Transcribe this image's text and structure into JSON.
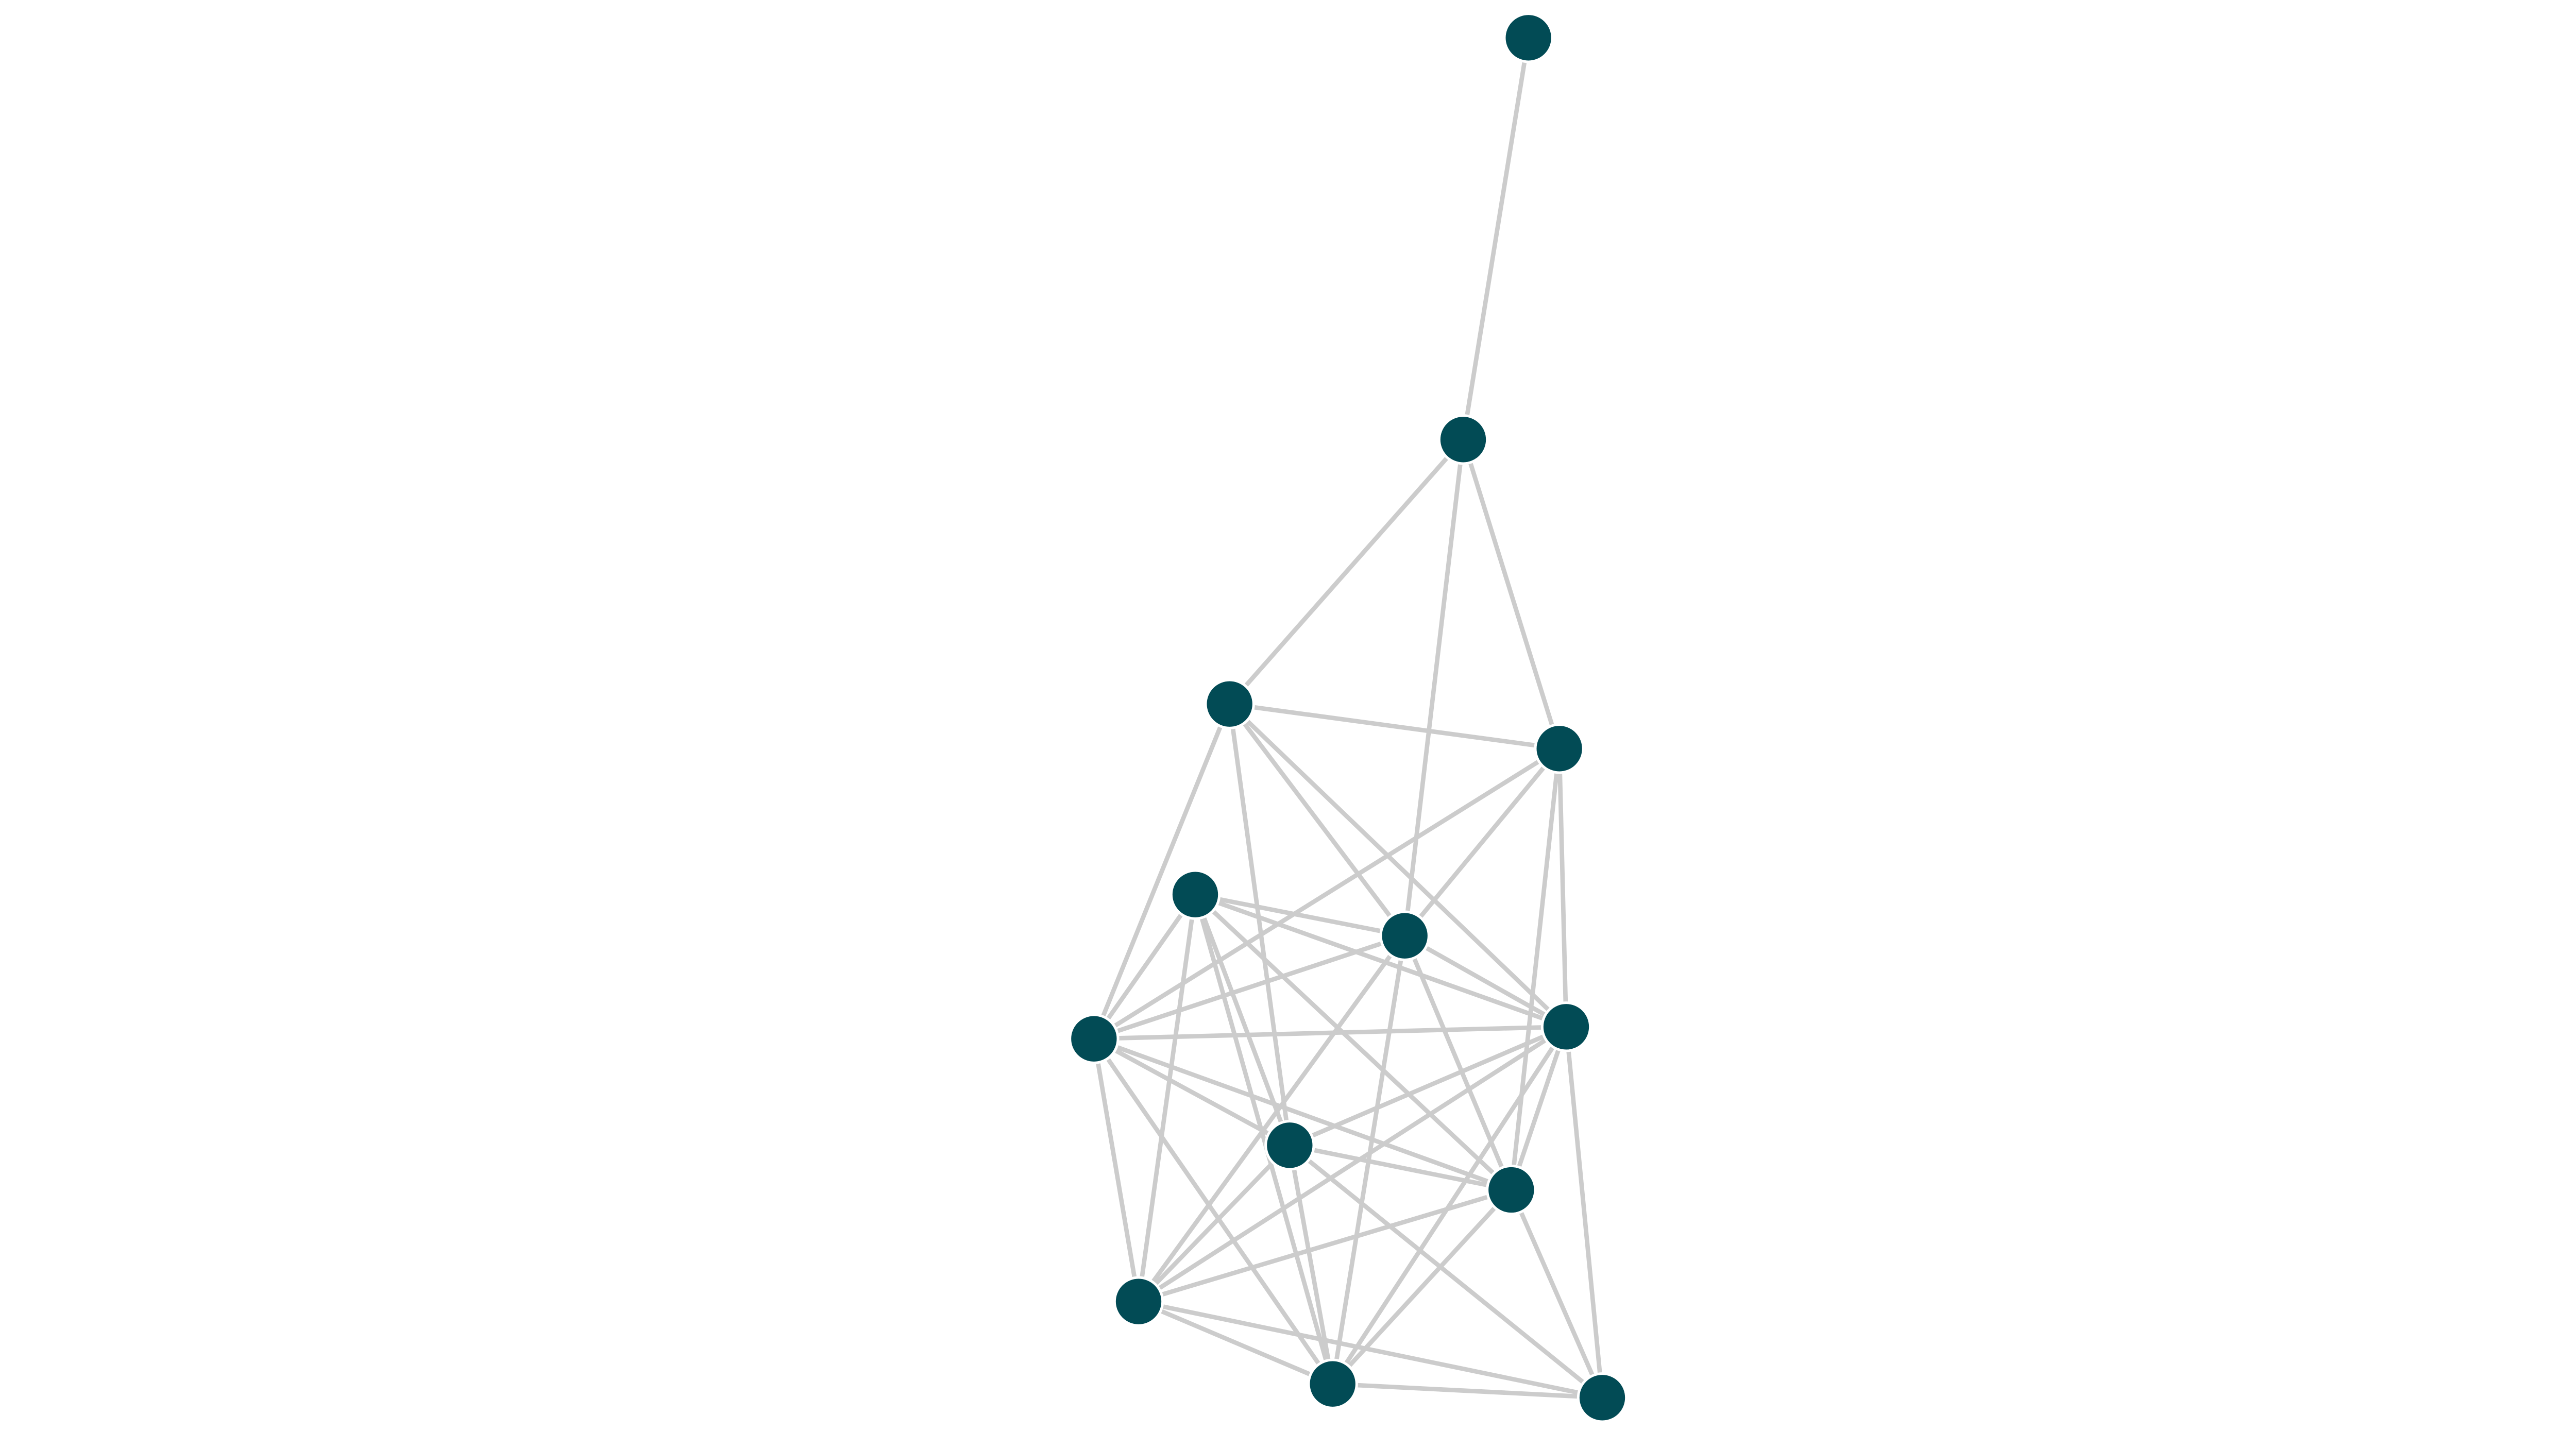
{
  "chart_data": {
    "type": "network",
    "node_count": 13,
    "node_color": "#024b55",
    "edge_color": "#cccccc",
    "edges": [
      [
        0,
        1
      ],
      [
        1,
        2
      ],
      [
        1,
        3
      ],
      [
        1,
        5
      ],
      [
        2,
        3
      ],
      [
        2,
        6
      ],
      [
        2,
        8
      ],
      [
        2,
        5
      ],
      [
        2,
        7
      ],
      [
        3,
        5
      ],
      [
        3,
        6
      ],
      [
        3,
        7
      ],
      [
        3,
        9
      ],
      [
        4,
        5
      ],
      [
        4,
        6
      ],
      [
        4,
        7
      ],
      [
        4,
        8
      ],
      [
        4,
        9
      ],
      [
        4,
        10
      ],
      [
        4,
        11
      ],
      [
        5,
        6
      ],
      [
        5,
        7
      ],
      [
        5,
        9
      ],
      [
        5,
        10
      ],
      [
        5,
        11
      ],
      [
        6,
        7
      ],
      [
        6,
        8
      ],
      [
        6,
        9
      ],
      [
        6,
        10
      ],
      [
        6,
        11
      ],
      [
        7,
        8
      ],
      [
        7,
        10
      ],
      [
        7,
        11
      ],
      [
        7,
        9
      ],
      [
        7,
        12
      ],
      [
        8,
        9
      ],
      [
        8,
        10
      ],
      [
        8,
        11
      ],
      [
        8,
        12
      ],
      [
        9,
        10
      ],
      [
        9,
        11
      ],
      [
        9,
        12
      ],
      [
        10,
        11
      ],
      [
        10,
        12
      ],
      [
        11,
        12
      ]
    ]
  }
}
